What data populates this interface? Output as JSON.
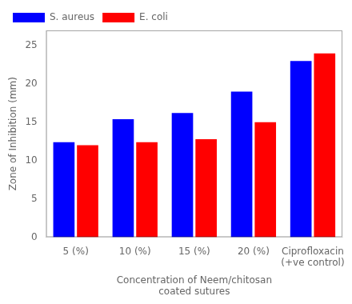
{
  "chart_data": {
    "type": "bar",
    "categories": [
      "5 (%)",
      "10 (%)",
      "15 (%)",
      "20 (%)",
      "Ciprofloxacin\n(+ve control)"
    ],
    "series": [
      {
        "name": "S. aureus",
        "color": "#0000FF",
        "values": [
          12.4,
          15.4,
          16.2,
          19.0,
          23.0
        ]
      },
      {
        "name": "E. coli",
        "color": "#FF0000",
        "values": [
          12.0,
          12.4,
          12.8,
          15.0,
          24.0
        ]
      }
    ],
    "xlabel": "Concentration of Neem/chitosan\ncoated sutures",
    "ylabel": "Zone of Inhibition (mm)",
    "ylim": [
      0,
      27
    ],
    "yticks": [
      0,
      5,
      10,
      15,
      20,
      25
    ],
    "grid": false,
    "legend": "upper left"
  }
}
